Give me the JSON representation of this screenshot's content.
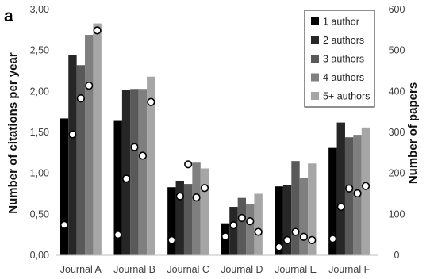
{
  "chart_data": {
    "type": "bar",
    "panel_label": "a",
    "title": "",
    "categories": [
      "Journal A",
      "Journal B",
      "Journal C",
      "Journal D",
      "Journal E",
      "Journal F"
    ],
    "series": [
      {
        "name": "1 author",
        "color": "#000000",
        "values": [
          1.67,
          1.64,
          0.83,
          0.39,
          0.84,
          1.31
        ]
      },
      {
        "name": "2 authors",
        "color": "#262626",
        "values": [
          2.44,
          2.02,
          0.91,
          0.59,
          0.86,
          1.62
        ]
      },
      {
        "name": "3 authors",
        "color": "#595959",
        "values": [
          2.32,
          2.03,
          0.87,
          0.7,
          1.15,
          1.44
        ]
      },
      {
        "name": "4 authors",
        "color": "#7f7f7f",
        "values": [
          2.69,
          2.03,
          1.13,
          0.62,
          0.94,
          1.47
        ]
      },
      {
        "name": "5+ authors",
        "color": "#a6a6a6",
        "values": [
          2.83,
          2.18,
          1.06,
          0.75,
          1.12,
          1.56
        ]
      }
    ],
    "papers_series": {
      "marker": "white circle, black outline",
      "values": [
        [
          74,
          295,
          383,
          414,
          549
        ],
        [
          50,
          187,
          264,
          243,
          374
        ],
        [
          37,
          144,
          222,
          141,
          164
        ],
        [
          46,
          73,
          91,
          83,
          57
        ],
        [
          20,
          37,
          57,
          45,
          37
        ],
        [
          40,
          118,
          163,
          151,
          169
        ]
      ]
    },
    "ylabel": "Number of citations per year",
    "y2label": "Number of papers",
    "ylim": [
      0,
      3.0
    ],
    "y2lim": [
      0,
      600
    ],
    "yticks": [
      "0,00",
      "0,50",
      "1,00",
      "1,50",
      "2,00",
      "2,50",
      "3,00"
    ],
    "y2ticks": [
      "0",
      "100",
      "200",
      "300",
      "400",
      "500",
      "600"
    ],
    "grid": false,
    "legend_position": "top-right"
  }
}
